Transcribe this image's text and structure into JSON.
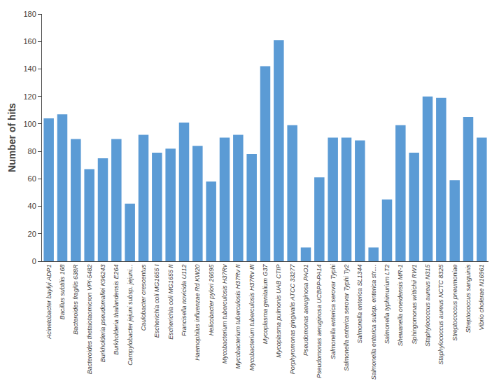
{
  "chart_data": {
    "type": "bar",
    "ylabel": "Number of hits",
    "categories": [
      "Acinetobacter baylyi ADP1",
      "Bacillus subtilis 168",
      "Bacteroides fragilis 638R",
      "Bacteroides thetaiotaomicron VPI-5482",
      "Burkholderia pseudomallei K96243",
      "Burkholderia thailandensis E264",
      "Campylobacter jejuni subsp. jejuni...",
      "Caulobacter crescentus",
      "Escherichia coli MG1655 I",
      "Escherichia coli MG1655 II",
      "Francisella novicida U112",
      "Haemophilus influenzae Rd KW20",
      "Helicobacter pylori 26695",
      "Mycobacterium tuberculosis H37Rv",
      "Mycobacterium tuberculosis H37Rv II",
      "Mycobacterium tuberculosis H37Rv III",
      "Mycoplasma genitalium G37",
      "Mycoplasma pulmonis UAB CTIP",
      "Porphyromonas gingivalis ATCC 33277",
      "Pseudomonas aeruginosa PAO1",
      "Pseudomonas aeruginosa UCBPP-PA14",
      "Salmonella enterica serovar Typhi",
      "Salmonella enterica serovar Typhi Ty2",
      "Salmonella enterica SL1344",
      "Salmonella enterica subsp. enterica str....",
      "Salmonella typhimurium LT2",
      "Shewanella oneidensis MR-1",
      "Sphingomonas wittichii RW1",
      "Staphylococcus aureus N315",
      "Staphylococcus aureus NCTC 8325",
      "Streptococcus pneumoniae",
      "Streptococcus sanguinis",
      "Vibrio cholerae N16961"
    ],
    "values": [
      104,
      107,
      89,
      67,
      75,
      89,
      42,
      92,
      79,
      82,
      101,
      84,
      58,
      90,
      92,
      78,
      142,
      161,
      99,
      10,
      61,
      90,
      90,
      88,
      10,
      45,
      99,
      79,
      120,
      119,
      59,
      105,
      90
    ],
    "color": "#5b9bd5",
    "ylim": [
      0,
      180
    ],
    "yticks": [
      0,
      20,
      40,
      60,
      80,
      100,
      120,
      140,
      160,
      180
    ],
    "grid": false
  }
}
